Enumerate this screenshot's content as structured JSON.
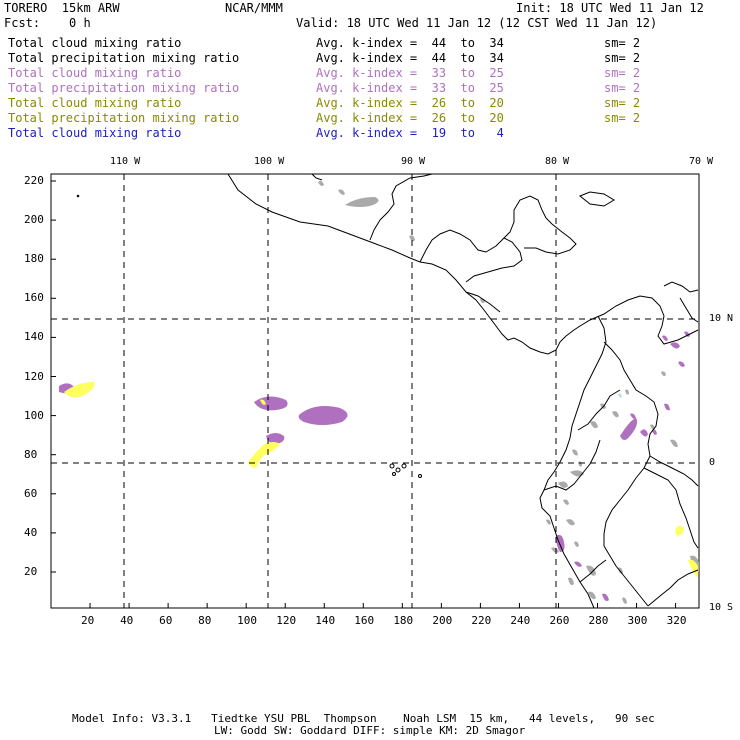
{
  "header": {
    "model": "TORERO  15km ARW",
    "org": "NCAR/MMM",
    "init": "Init: 18 UTC Wed 11 Jan 12",
    "fcst": "Fcst:    0 h",
    "valid": "Valid: 18 UTC Wed 11 Jan 12 (12 CST Wed 11 Jan 12)"
  },
  "legend": [
    {
      "field": "Total cloud mixing ratio",
      "range": "Avg. k-index =  44  to  34",
      "sm": "sm= 2",
      "color": "#000000"
    },
    {
      "field": "Total precipitation mixing ratio",
      "range": "Avg. k-index =  44  to  34",
      "sm": "sm= 2",
      "color": "#000000"
    },
    {
      "field": "Total cloud mixing ratio",
      "range": "Avg. k-index =  33  to  25",
      "sm": "sm= 2",
      "color": "#b070c0"
    },
    {
      "field": "Total precipitation mixing ratio",
      "range": "Avg. k-index =  33  to  25",
      "sm": "sm= 2",
      "color": "#b070c0"
    },
    {
      "field": "Total cloud mixing ratio",
      "range": "Avg. k-index =  26  to  20",
      "sm": "sm= 2",
      "color": "#8a8a00"
    },
    {
      "field": "Total precipitation mixing ratio",
      "range": "Avg. k-index =  26  to  20",
      "sm": "sm= 2",
      "color": "#8a8a00"
    },
    {
      "field": "Total cloud mixing ratio",
      "range": "Avg. k-index =  19  to   4",
      "sm": "",
      "color": "#2020c0"
    }
  ],
  "map": {
    "lon_labels": [
      "110 W",
      "100 W",
      "90 W",
      "80 W",
      "70 W"
    ],
    "lat_labels": [
      "10 N",
      "0",
      "10 S"
    ],
    "y_ticks": [
      "220",
      "200",
      "180",
      "160",
      "140",
      "120",
      "100",
      "80",
      "60",
      "40",
      "20"
    ],
    "x_ticks": [
      "20",
      "40",
      "60",
      "80",
      "100",
      "120",
      "140",
      "160",
      "180",
      "200",
      "220",
      "240",
      "260",
      "280",
      "300",
      "320"
    ],
    "colors": {
      "gray": "#aaaaaa",
      "purple": "#b070c0",
      "yellow": "#ffff60",
      "lightblue": "#b0e0f0"
    }
  },
  "footer": {
    "line1": "Model Info: V3.3.1   Tiedtke YSU PBL  Thompson    Noah LSM  15 km,   44 levels,   90 sec",
    "line2": "LW: Godd SW: Goddard DIFF: simple KM: 2D Smagor"
  }
}
